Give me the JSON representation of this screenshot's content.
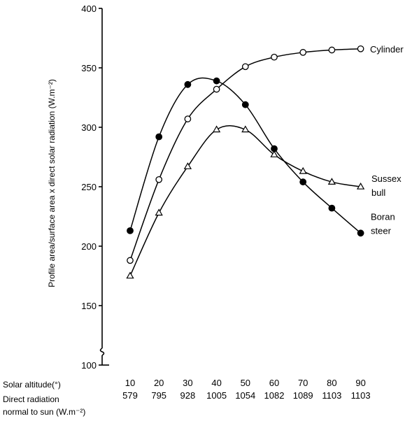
{
  "chart_data": {
    "type": "line",
    "ylabel": "Profile area/surface area x direct solar radiation (W.m⁻²)",
    "ylim": [
      100,
      400
    ],
    "yticks": [
      100,
      150,
      200,
      250,
      300,
      350,
      400
    ],
    "y_axis_break": true,
    "x_rows": [
      {
        "label": "Solar altitude(°)",
        "values": [
          "10",
          "20",
          "30",
          "40",
          "50",
          "60",
          "70",
          "80",
          "90"
        ]
      },
      {
        "label_line1": "Direct radiation",
        "label_line2": "normal to sun (W.m⁻²)",
        "values": [
          "579",
          "795",
          "928",
          "1005",
          "1054",
          "1082",
          "1089",
          "1103",
          "1103"
        ]
      }
    ],
    "x": [
      10,
      20,
      30,
      40,
      50,
      60,
      70,
      80,
      90
    ],
    "series": [
      {
        "name": "Cylinder",
        "marker": "open-circle",
        "values": [
          188,
          256,
          307,
          332,
          351,
          359,
          363,
          365,
          366
        ]
      },
      {
        "name_line1": "Sussex",
        "name_line2": "bull",
        "marker": "open-triangle",
        "values": [
          175,
          228,
          267,
          298,
          298,
          277,
          263,
          254,
          250
        ]
      },
      {
        "name_line1": "Boran",
        "name_line2": "steer",
        "marker": "filled-circle",
        "values": [
          213,
          292,
          336,
          339,
          319,
          282,
          254,
          232,
          211
        ]
      }
    ],
    "grid": false,
    "legend": "labels at right end of each series"
  }
}
